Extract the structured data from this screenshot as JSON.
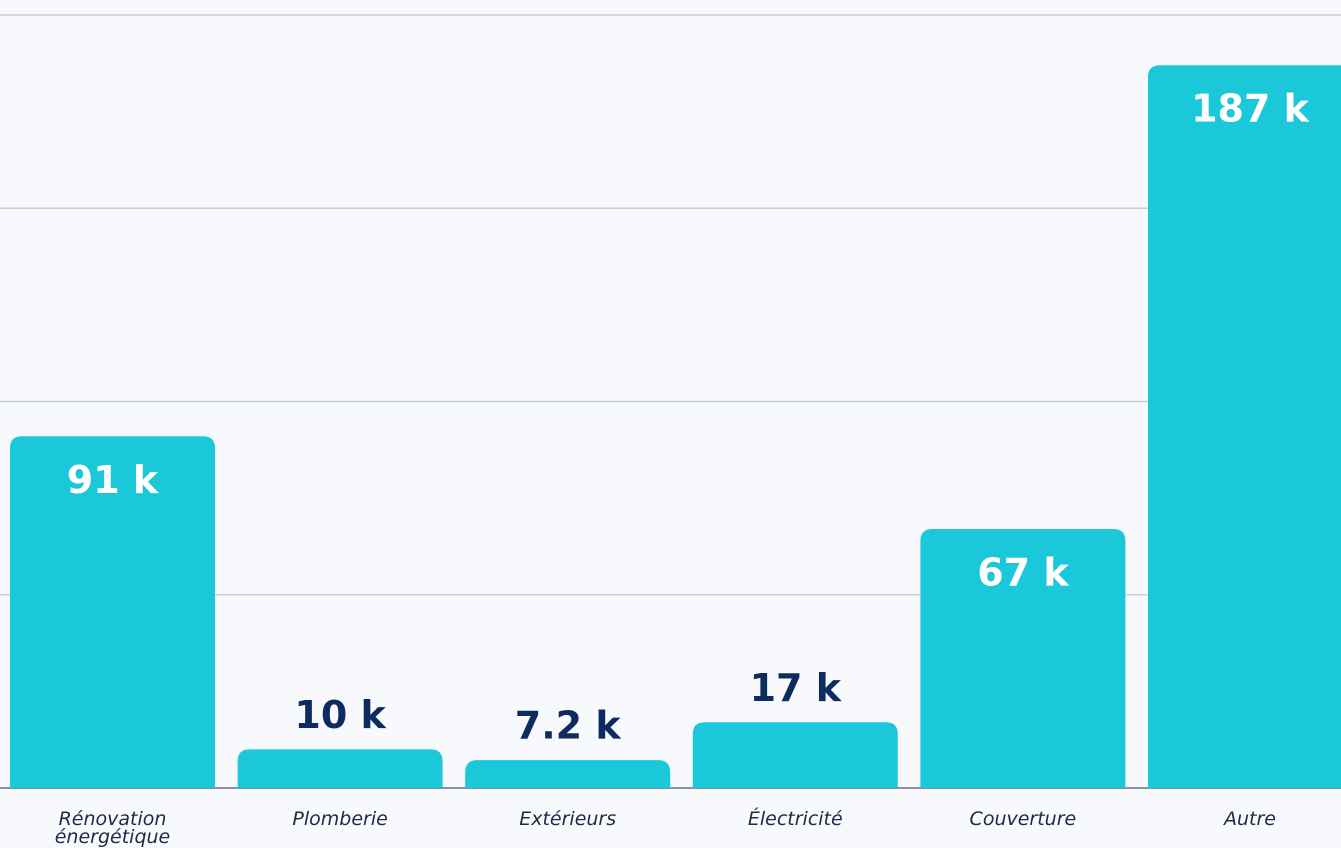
{
  "chart_data": {
    "type": "bar",
    "categories": [
      "Rénovation énergétique",
      "Plomberie",
      "Extérieurs",
      "Électricité",
      "Couverture",
      "Autre"
    ],
    "values": [
      91000,
      10000,
      7200,
      17000,
      67000,
      187000
    ],
    "value_labels": [
      "91 k",
      "10 k",
      "7.2 k",
      "17 k",
      "67 k",
      "187 k"
    ],
    "color": "#1bc8da",
    "ylim": [
      0,
      200000
    ],
    "yticks": [
      0,
      50000,
      100000,
      150000,
      200000
    ],
    "grid": true
  }
}
